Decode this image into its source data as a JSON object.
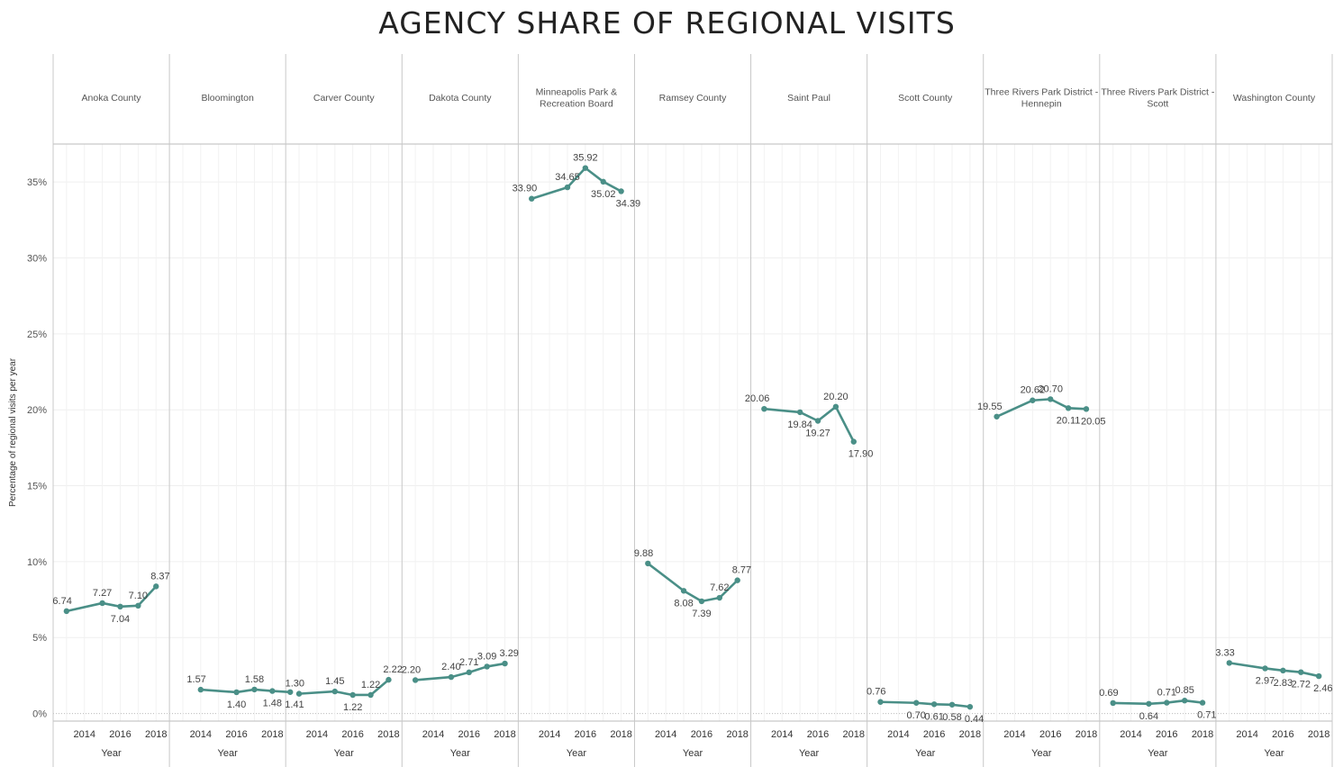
{
  "chart_data": {
    "type": "line",
    "title": "AGENCY SHARE OF REGIONAL VISITS",
    "ylabel": "Percentage of  regional visits per year",
    "xlabel": "Year",
    "x": [
      2013,
      2014,
      2015,
      2016,
      2017,
      2018
    ],
    "x_ticks": [
      2014,
      2016,
      2018
    ],
    "y_ticks": [
      "0%",
      "5%",
      "10%",
      "15%",
      "20%",
      "25%",
      "30%",
      "35%"
    ],
    "ylim": [
      -0.5,
      37.5
    ],
    "grid": true,
    "line_color": "#4a8f87",
    "series": [
      {
        "name": "Anoka County",
        "x": [
          2013,
          2015,
          2016,
          2017,
          2018
        ],
        "values": [
          6.74,
          7.27,
          7.04,
          7.1,
          8.37
        ]
      },
      {
        "name": "Bloomington",
        "x": [
          2014,
          2016,
          2017,
          2018,
          2019
        ],
        "values": [
          1.57,
          1.4,
          1.58,
          1.48,
          1.41
        ]
      },
      {
        "name": "Carver County",
        "x": [
          2013,
          2015,
          2016,
          2017,
          2018
        ],
        "values": [
          1.3,
          1.45,
          1.22,
          1.22,
          2.22
        ]
      },
      {
        "name": "Dakota County",
        "x": [
          2013,
          2015,
          2016,
          2017,
          2018
        ],
        "values": [
          2.2,
          2.4,
          2.71,
          3.09,
          3.29
        ]
      },
      {
        "name": "Minneapolis Park & Recreation Board",
        "x": [
          2013,
          2015,
          2016,
          2017,
          2018
        ],
        "values": [
          33.9,
          34.65,
          35.92,
          35.02,
          34.39
        ]
      },
      {
        "name": "Ramsey County",
        "x": [
          2013,
          2015,
          2016,
          2017,
          2018
        ],
        "values": [
          9.88,
          8.08,
          7.39,
          7.62,
          8.77
        ]
      },
      {
        "name": "Saint Paul",
        "x": [
          2013,
          2015,
          2016,
          2017,
          2018
        ],
        "values": [
          20.06,
          19.84,
          19.27,
          20.2,
          17.9
        ]
      },
      {
        "name": "Scott County",
        "x": [
          2013,
          2015,
          2016,
          2017,
          2018
        ],
        "values": [
          0.76,
          0.7,
          0.61,
          0.58,
          0.44
        ]
      },
      {
        "name": "Three Rivers Park District - Hennepin",
        "x": [
          2013,
          2015,
          2016,
          2017,
          2018
        ],
        "values": [
          19.55,
          20.62,
          20.7,
          20.11,
          20.05
        ]
      },
      {
        "name": "Three Rivers Park District - Scott",
        "x": [
          2013,
          2015,
          2016,
          2017,
          2018
        ],
        "values": [
          0.69,
          0.64,
          0.71,
          0.85,
          0.71
        ]
      },
      {
        "name": "Washington County",
        "x": [
          2013,
          2015,
          2016,
          2017,
          2018
        ],
        "values": [
          3.33,
          2.97,
          2.83,
          2.72,
          2.46
        ]
      }
    ],
    "panel_headers": [
      [
        "Anoka County"
      ],
      [
        "Bloomington"
      ],
      [
        "Carver County"
      ],
      [
        "Dakota County"
      ],
      [
        "Minneapolis Park &",
        "Recreation Board"
      ],
      [
        "Ramsey County"
      ],
      [
        "Saint Paul"
      ],
      [
        "Scott County"
      ],
      [
        "Three Rivers Park District -",
        "Hennepin"
      ],
      [
        "Three Rivers Park District -",
        "Scott"
      ],
      [
        "Washington County"
      ]
    ]
  }
}
